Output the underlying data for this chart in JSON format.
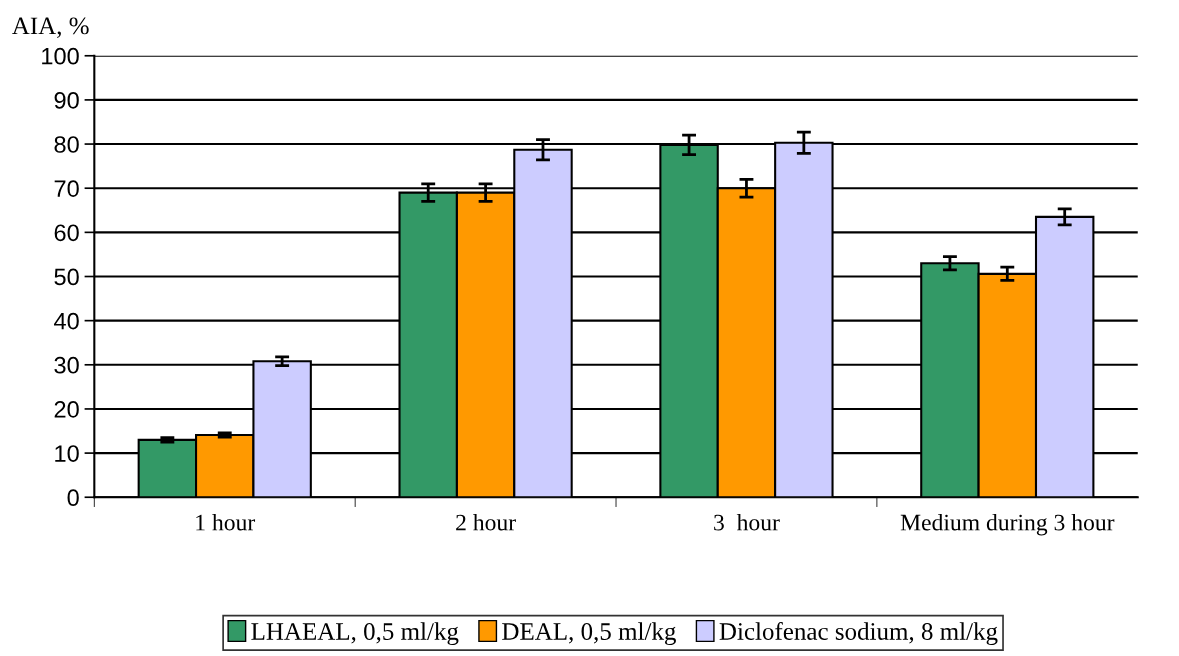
{
  "chart_data": {
    "type": "bar",
    "ylabel": "AIA, %",
    "categories": [
      "1 hour",
      "2 hour",
      "3  hour",
      "Medium during 3 hour"
    ],
    "series": [
      {
        "name": "LHAEAL, 0,5 ml/kg",
        "color": "#339966",
        "values": [
          13,
          69,
          79.8,
          53
        ],
        "errors": [
          0.5,
          2,
          2.2,
          1.5
        ]
      },
      {
        "name": "DEAL, 0,5 ml/kg",
        "color": "#ff9900",
        "values": [
          14.1,
          69,
          70,
          50.6
        ],
        "errors": [
          0.5,
          2,
          2,
          1.5
        ]
      },
      {
        "name": "Diclofenac sodium, 8 ml/kg",
        "color": "#ccccff",
        "values": [
          30.8,
          78.7,
          80.3,
          63.5
        ],
        "errors": [
          1,
          2.3,
          2.4,
          1.8
        ]
      }
    ],
    "ylim": [
      0,
      100
    ],
    "yticks": [
      0,
      10,
      20,
      30,
      40,
      50,
      60,
      70,
      80,
      90,
      100
    ],
    "grid": "y",
    "legend": "bottom"
  }
}
